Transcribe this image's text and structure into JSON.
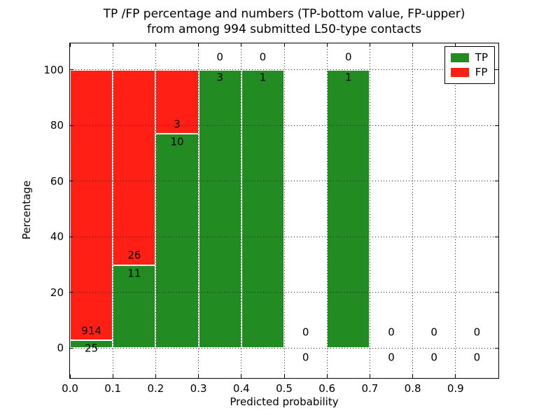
{
  "figure": {
    "title_line1": "TP /FP percentage and numbers (TP-bottom value, FP-upper)",
    "title_line2": "from among 994 submitted L50-type contacts",
    "xlabel": "Predicted probability",
    "ylabel": "Percentage",
    "background_color": "#ffffff"
  },
  "legend": {
    "position": "upper right",
    "items": [
      {
        "label": "TP",
        "color": "#228b22"
      },
      {
        "label": "FP",
        "color": "#ff1f14"
      }
    ]
  },
  "chart_data": {
    "type": "bar",
    "stacked": true,
    "title": "TP /FP percentage and numbers (TP-bottom value, FP-upper) from among 994 submitted L50-type contacts",
    "xlabel": "Predicted probability",
    "ylabel": "Percentage",
    "total_contacts": 994,
    "xlim": [
      0.0,
      1.0
    ],
    "ylim": [
      -11,
      110
    ],
    "grid": true,
    "grid_style": "dotted",
    "legend_position": "upper right",
    "x_tick_labels": [
      "0.0",
      "0.1",
      "0.2",
      "0.3",
      "0.4",
      "0.5",
      "0.6",
      "0.7",
      "0.8",
      "0.9"
    ],
    "y_tick_labels": [
      "0",
      "20",
      "40",
      "60",
      "80",
      "100"
    ],
    "y_ticks": [
      0,
      20,
      40,
      60,
      80,
      100
    ],
    "colors": {
      "tp": "#228b22",
      "fp": "#ff1f14"
    },
    "bins": [
      {
        "range": [
          0.0,
          0.1
        ],
        "tp": 25,
        "fp": 914,
        "tp_pct": 2.66,
        "fp_pct": 97.34
      },
      {
        "range": [
          0.1,
          0.2
        ],
        "tp": 11,
        "fp": 26,
        "tp_pct": 29.73,
        "fp_pct": 70.27
      },
      {
        "range": [
          0.2,
          0.3
        ],
        "tp": 10,
        "fp": 3,
        "tp_pct": 76.92,
        "fp_pct": 23.08
      },
      {
        "range": [
          0.3,
          0.4
        ],
        "tp": 3,
        "fp": 0,
        "tp_pct": 100,
        "fp_pct": 0
      },
      {
        "range": [
          0.4,
          0.5
        ],
        "tp": 1,
        "fp": 0,
        "tp_pct": 100,
        "fp_pct": 0
      },
      {
        "range": [
          0.5,
          0.6
        ],
        "tp": 0,
        "fp": 0,
        "tp_pct": 0,
        "fp_pct": 0
      },
      {
        "range": [
          0.6,
          0.7
        ],
        "tp": 1,
        "fp": 0,
        "tp_pct": 100,
        "fp_pct": 0
      },
      {
        "range": [
          0.7,
          0.8
        ],
        "tp": 0,
        "fp": 0,
        "tp_pct": 0,
        "fp_pct": 0
      },
      {
        "range": [
          0.8,
          0.9
        ],
        "tp": 0,
        "fp": 0,
        "tp_pct": 0,
        "fp_pct": 0
      },
      {
        "range": [
          0.9,
          1.0
        ],
        "tp": 0,
        "fp": 0,
        "tp_pct": 0,
        "fp_pct": 0
      }
    ]
  }
}
